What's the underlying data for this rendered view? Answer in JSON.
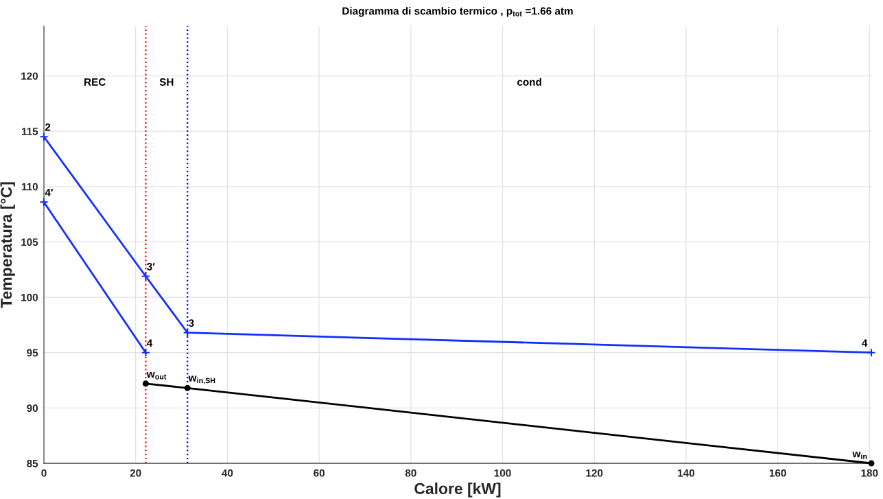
{
  "chart_data": {
    "type": "line",
    "title": "Diagramma di scambio termico , p$_{tot}$ =1.66 atm",
    "xlabel": "Calore [kW]",
    "ylabel": "Temperatura [°C]",
    "series": [
      {
        "x": [
          0,
          22.2,
          31.3,
          180.4
        ],
        "values": [
          114.5,
          101.9,
          96.8,
          95.0
        ],
        "color": "#1030ff",
        "marker": "cross",
        "line_style": "solid"
      },
      {
        "x": [
          0,
          22.2
        ],
        "values": [
          108.6,
          95.0
        ],
        "color": "#1030ff",
        "marker": "cross",
        "line_style": "solid"
      },
      {
        "x": [
          22.2,
          31.3,
          180.4
        ],
        "values": [
          92.2,
          91.8,
          85.0
        ],
        "color": "#000000",
        "marker": "circle",
        "line_style": "solid"
      }
    ],
    "ref_lines": [
      {
        "axis": "x",
        "value": 22.2,
        "color": "#ff0000",
        "line_style": "dotted"
      },
      {
        "axis": "x",
        "value": 31.3,
        "color": "#0000ff",
        "line_style": "dotted"
      }
    ],
    "annotations": [
      "REC",
      "SH",
      "cond",
      {
        "text": "2",
        "x": 0,
        "y": 114.5
      },
      {
        "text": "4′",
        "x": 0,
        "y": 108.6
      },
      {
        "text": "3′",
        "x": 22.2,
        "y": 101.9
      },
      {
        "text": "4",
        "x": 22.2,
        "y": 95.0
      },
      {
        "text": "3",
        "x": 31.3,
        "y": 96.8
      },
      {
        "text": "4",
        "x": 180.4,
        "y": 95.0
      },
      {
        "text": "w$_{out}$",
        "x": 22.2,
        "y": 92.2
      },
      {
        "text": "w$_{in,SH}$",
        "x": 31.3,
        "y": 91.8
      },
      {
        "text": "w$_{in}$",
        "x": 180.4,
        "y": 85.0
      }
    ],
    "xlim": [
      0,
      180.4
    ],
    "ylim": [
      85,
      124.5
    ],
    "xticks": [
      0,
      20,
      40,
      60,
      80,
      100,
      120,
      140,
      160,
      180
    ],
    "yticks": [
      85,
      90,
      95,
      100,
      105,
      110,
      115,
      120
    ],
    "grid": true
  }
}
